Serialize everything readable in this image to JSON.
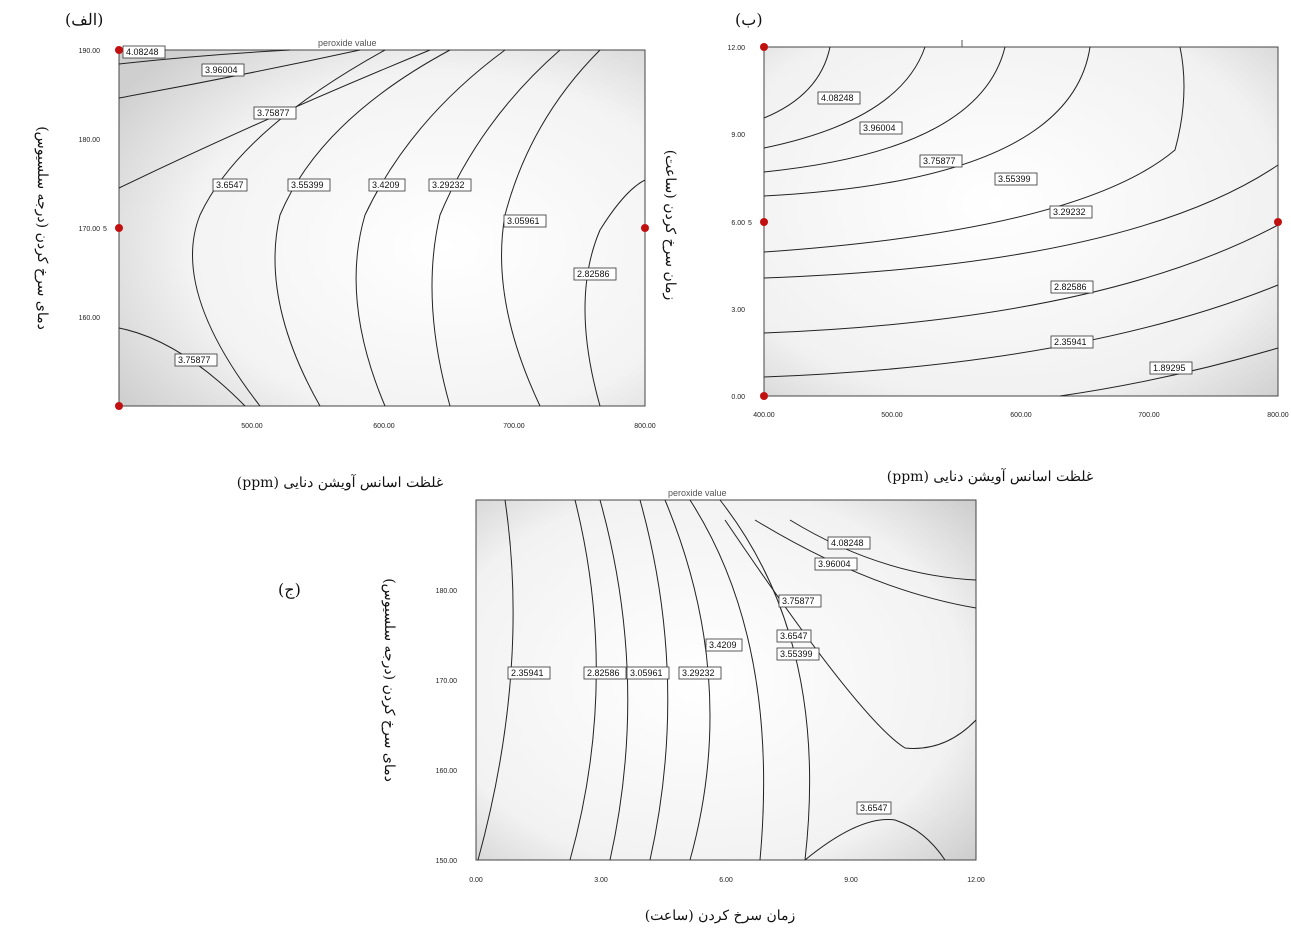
{
  "chart_data": [
    {
      "id": "a",
      "type": "contour",
      "panel_label": "(الف)",
      "header_text": "peroxide value",
      "xlabel": "غلظت اسانس آویشن دنایی (ppm)",
      "ylabel": "دمای سرخ کردن (درجه سلسیوس)",
      "xlim": [
        400,
        800
      ],
      "ylim": [
        150,
        190
      ],
      "x_ticks": [
        "500.00",
        "600.00",
        "700.00",
        "800.00"
      ],
      "y_ticks": [
        "160.00",
        "170.00",
        "180.00",
        "190.00"
      ],
      "contour_levels": [
        "4.08248",
        "3.96004",
        "3.75877",
        "3.6547",
        "3.55399",
        "3.4209",
        "3.29232",
        "3.05961",
        "2.82586",
        "3.75877"
      ],
      "design_points": [
        [
          400,
          190
        ],
        [
          400,
          170
        ],
        [
          800,
          170
        ],
        [
          400,
          150
        ]
      ],
      "point_count_label": "5"
    },
    {
      "id": "b",
      "type": "contour",
      "panel_label": "(ب)",
      "xlabel": "غلظت اسانس آویشن دنایی (ppm)",
      "ylabel": "زمان سرخ کردن (ساعت)",
      "xlim": [
        400,
        800
      ],
      "ylim": [
        0,
        12
      ],
      "x_ticks": [
        "400.00",
        "500.00",
        "600.00",
        "700.00",
        "800.00"
      ],
      "y_ticks": [
        "0.00",
        "3.00",
        "6.00",
        "9.00",
        "12.00"
      ],
      "contour_levels": [
        "4.08248",
        "3.96004",
        "3.75877",
        "3.55399",
        "3.29232",
        "2.82586",
        "2.35941",
        "1.89295"
      ],
      "design_points": [
        [
          400,
          12
        ],
        [
          400,
          6
        ],
        [
          800,
          6
        ],
        [
          400,
          0
        ]
      ],
      "point_count_label": "5"
    },
    {
      "id": "c",
      "type": "contour",
      "panel_label": "(ج)",
      "header_text": "peroxide value",
      "xlabel": "زمان سرخ کردن (ساعت)",
      "ylabel": "دمای سرخ کردن (درجه سلسیوس)",
      "xlim": [
        0,
        12
      ],
      "ylim": [
        150,
        190
      ],
      "x_ticks": [
        "0.00",
        "3.00",
        "6.00",
        "9.00",
        "12.00"
      ],
      "y_ticks": [
        "150.00",
        "160.00",
        "170.00",
        "180.00"
      ],
      "contour_levels": [
        "4.08248",
        "3.96004",
        "3.75877",
        "3.6547",
        "3.4209",
        "3.55399",
        "2.35941",
        "2.82586",
        "3.05961",
        "3.29232",
        "3.6547"
      ]
    }
  ]
}
